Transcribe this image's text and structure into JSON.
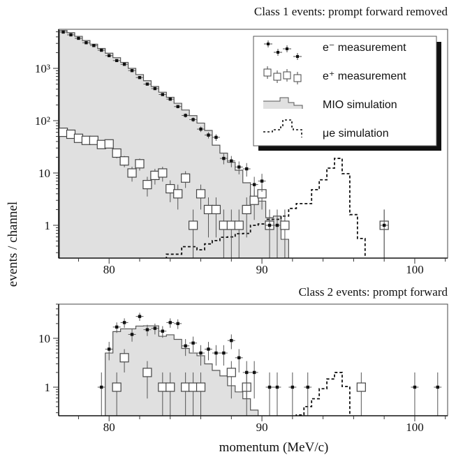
{
  "ylabel": "events / channel",
  "xlabel": "momentum (MeV/c)",
  "colors": {
    "mio_fill": "#e0e0e0",
    "mio_line": "#555555",
    "errorbar": "#555555",
    "point": "#111111",
    "shadow": "#111111"
  },
  "chart_data": [
    {
      "type": "histogram+scatter",
      "title": "Class 1 events: prompt forward removed",
      "xlim": [
        76.7,
        102.15
      ],
      "ylim": [
        0.236,
        5580
      ],
      "yscale": "log",
      "xticks": [
        {
          "v": 80,
          "label": "80"
        },
        {
          "v": 90,
          "label": "90"
        },
        {
          "v": 100,
          "label": "100"
        }
      ],
      "yticks": [
        {
          "v": 1,
          "label": "1"
        },
        {
          "v": 10,
          "label": "10"
        },
        {
          "v": 100,
          "label": "10²"
        },
        {
          "v": 1000,
          "label": "10³"
        }
      ],
      "bin_width": 0.5,
      "legend": {
        "placement": "top-right",
        "entries": [
          {
            "key": "e_minus",
            "label": "e⁻ measurement",
            "icon": "cross-point"
          },
          {
            "key": "e_plus",
            "label": "e⁺ measurement",
            "icon": "open-square"
          },
          {
            "key": "mio",
            "label": "MIO simulation",
            "icon": "filled-histogram"
          },
          {
            "key": "mue",
            "label": "μe simulation",
            "icon": "dashed-histogram"
          }
        ]
      },
      "series": {
        "e_minus": {
          "x": [
            77.0,
            77.5,
            78.0,
            78.5,
            79.0,
            79.5,
            80.0,
            80.5,
            81.0,
            81.5,
            82.0,
            82.5,
            83.0,
            83.5,
            84.0,
            84.5,
            85.0,
            85.5,
            86.0,
            86.5,
            87.0,
            87.5,
            88.0,
            88.5,
            89.0,
            89.5,
            90.0,
            90.5,
            91.0,
            98.0
          ],
          "y": [
            4940,
            4370,
            3750,
            3090,
            2730,
            2220,
            1750,
            1410,
            1195,
            906,
            667,
            500,
            410,
            316,
            258,
            186,
            126,
            105,
            69,
            53,
            48,
            19,
            17,
            13,
            12,
            6,
            7,
            1,
            1,
            1
          ]
        },
        "e_plus": {
          "x": [
            77.0,
            77.5,
            78.0,
            78.5,
            79.0,
            79.5,
            80.0,
            80.5,
            81.0,
            81.5,
            82.0,
            82.5,
            83.0,
            83.5,
            84.0,
            84.5,
            85.0,
            85.5,
            86.0,
            86.5,
            87.0,
            87.5,
            88.0,
            88.5,
            89.0,
            89.5,
            90.0,
            90.5,
            91.5,
            98.0
          ],
          "y": [
            60,
            55,
            46,
            42,
            42,
            35,
            36,
            24,
            17,
            10,
            15,
            6,
            9,
            10,
            5,
            4,
            8,
            1,
            4,
            2,
            2,
            1,
            1,
            1,
            2,
            3,
            4,
            1,
            1,
            1
          ]
        },
        "mio": {
          "x_start": 77.0,
          "y": [
            5300,
            4800,
            4100,
            3400,
            2900,
            2400,
            1950,
            1600,
            1300,
            1000,
            760,
            580,
            450,
            350,
            280,
            215,
            160,
            125,
            90,
            65,
            34,
            24,
            16,
            11.3,
            6.5,
            3.4,
            2.9,
            1.4,
            1.5,
            0.54
          ]
        },
        "mue": {
          "x_start": 84.0,
          "y": [
            0.28,
            0.28,
            0.39,
            0.39,
            0.34,
            0.44,
            0.51,
            0.59,
            0.6,
            0.69,
            0.7,
            1.0,
            1.06,
            1.3,
            1.3,
            1.5,
            2.1,
            2.6,
            2.6,
            4.8,
            7.4,
            12.4,
            19,
            9.7,
            1.6,
            0.56
          ]
        }
      }
    },
    {
      "type": "histogram+scatter",
      "title": "Class 2 events: prompt forward",
      "xlim": [
        76.7,
        102.15
      ],
      "ylim": [
        0.26,
        50
      ],
      "yscale": "log",
      "xticks": [
        {
          "v": 80,
          "label": "80"
        },
        {
          "v": 90,
          "label": "90"
        },
        {
          "v": 100,
          "label": "100"
        }
      ],
      "yticks": [
        {
          "v": 1,
          "label": "1"
        },
        {
          "v": 10,
          "label": "10"
        }
      ],
      "bin_width": 0.5,
      "series": {
        "e_minus": {
          "x": [
            79.5,
            80.0,
            80.5,
            81.0,
            81.5,
            82.0,
            82.5,
            83.0,
            83.5,
            84.0,
            84.5,
            85.0,
            85.5,
            86.0,
            86.5,
            87.0,
            87.5,
            88.0,
            88.5,
            89.0,
            89.5,
            90.5,
            91.0,
            92.0,
            93.0,
            100.0,
            101.5
          ],
          "y": [
            1,
            6,
            17,
            21,
            12,
            28,
            15,
            16,
            14,
            21,
            20,
            7,
            8,
            5,
            6,
            5,
            5,
            9,
            4,
            2,
            2,
            1,
            1,
            1,
            1,
            1,
            1
          ]
        },
        "e_plus": {
          "x": [
            80.5,
            81.0,
            82.5,
            83.5,
            84.0,
            85.0,
            85.5,
            86.0,
            88.0,
            89.0,
            96.5
          ],
          "y": [
            1,
            4,
            2,
            1,
            1,
            1,
            1,
            1,
            2,
            1,
            1
          ]
        },
        "mio": {
          "x_start": 80.0,
          "y": [
            5,
            13.7,
            15.6,
            15.6,
            17.8,
            18,
            18,
            11,
            11.8,
            9.5,
            6.2,
            5,
            4.4,
            3,
            2.2,
            1.7,
            1.07,
            0.8,
            0.58,
            0.34
          ]
        },
        "mue": {
          "x_start": 92.5,
          "y": [
            0.27,
            0.4,
            0.58,
            0.93,
            1.47,
            2.0,
            1.03
          ]
        }
      }
    }
  ]
}
